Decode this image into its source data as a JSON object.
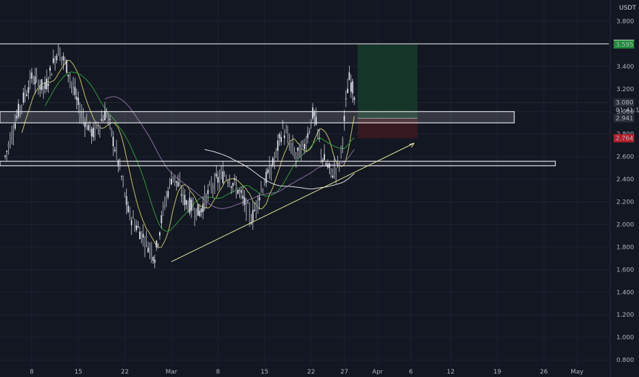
{
  "chart_data": {
    "type": "candlestick",
    "currency": "USDT",
    "ylim": [
      0.75,
      3.95
    ],
    "y_ticks": [
      "3.800",
      "3.600",
      "3.400",
      "3.200",
      "3.000",
      "2.800",
      "2.600",
      "2.400",
      "2.200",
      "2.000",
      "1.800",
      "1.600",
      "1.400",
      "1.200",
      "1.000",
      "0.800"
    ],
    "x_ticks": [
      "8",
      "15",
      "22",
      "Mar",
      "8",
      "15",
      "22",
      "27",
      "Apr",
      "6",
      "12",
      "19",
      "26",
      "May"
    ],
    "price_labels": {
      "top_resistance": "3.600",
      "take_profit": "3.595",
      "last_price": "3.080",
      "countdown": "01:41:11",
      "entry": "2.941",
      "stop_loss": "2.764"
    },
    "levels": {
      "top_line": 3.6,
      "upper_zone": [
        2.9,
        3.0
      ],
      "lower_zone": [
        2.52,
        2.56
      ]
    },
    "trendline": {
      "from": {
        "x": "Mar 1",
        "y": 1.67
      },
      "to": {
        "x": "Apr 6",
        "y": 2.72
      }
    },
    "position": {
      "entry": 2.941,
      "take_profit": 3.595,
      "stop_loss": 2.764
    },
    "colors": {
      "background": "#131722",
      "candle": "#d1d4dc",
      "grid": "#1e2230",
      "zone_stroke": "#e6e6e6",
      "trendline": "#e6e89a",
      "profit_fill": "#17392a",
      "loss_fill": "#3b1a20",
      "tp_badge": "#1f8b3b",
      "sl_badge": "#b3202a",
      "ma_yellow": "#c9c96a",
      "ma_green": "#2f9e3a",
      "ma_purple": "#8d6fa4",
      "ma_white": "#e6e6e6"
    }
  }
}
